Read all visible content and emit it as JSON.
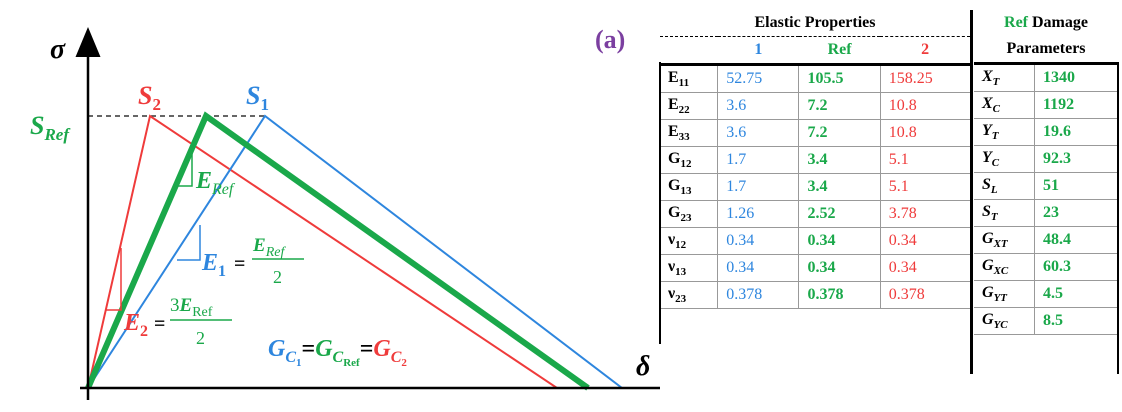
{
  "diagram": {
    "panel_label": "(a)",
    "y_axis_symbol": "σ",
    "x_axis_symbol": "δ",
    "peak_labels": {
      "s2": {
        "base": "S",
        "sub": "2"
      },
      "s1": {
        "base": "S",
        "sub": "1"
      },
      "sref": {
        "base": "S",
        "sub": "Ref"
      }
    },
    "stiffness_labels": {
      "eref": {
        "base": "E",
        "sub": "Ref"
      },
      "e1": {
        "base": "E",
        "sub": "1",
        "eq": "=",
        "num_base": "E",
        "num_sub": "Ref",
        "den": "2"
      },
      "e2": {
        "base": "E",
        "sub": "2",
        "eq": "=",
        "num_coef": "3",
        "num_base": "E",
        "num_sub": "Ref",
        "den": "2"
      }
    },
    "energy_equation": {
      "g1": {
        "base": "G",
        "sub": "C",
        "subsub": "1"
      },
      "gref": {
        "base": "G",
        "sub": "C",
        "subsub": "Ref"
      },
      "g2": {
        "base": "G",
        "sub": "C",
        "subsub": "2"
      },
      "eq": "="
    },
    "colors": {
      "set1": "#2e86de",
      "ref": "#1aa84a",
      "set2": "#ef3b3b",
      "panel": "#7b3fa0"
    }
  },
  "elastic_table": {
    "title": "Elastic Properties",
    "columns": [
      "1",
      "Ref",
      "2"
    ],
    "rows": [
      {
        "base": "E",
        "sub": "11",
        "v1": "52.75",
        "vref": "105.5",
        "v2": "158.25"
      },
      {
        "base": "E",
        "sub": "22",
        "v1": "3.6",
        "vref": "7.2",
        "v2": "10.8"
      },
      {
        "base": "E",
        "sub": "33",
        "v1": "3.6",
        "vref": "7.2",
        "v2": "10.8"
      },
      {
        "base": "G",
        "sub": "12",
        "v1": "1.7",
        "vref": "3.4",
        "v2": "5.1"
      },
      {
        "base": "G",
        "sub": "13",
        "v1": "1.7",
        "vref": "3.4",
        "v2": "5.1"
      },
      {
        "base": "G",
        "sub": "23",
        "v1": "1.26",
        "vref": "2.52",
        "v2": "3.78"
      },
      {
        "base": "ν",
        "sub": "12",
        "v1": "0.34",
        "vref": "0.34",
        "v2": "0.34"
      },
      {
        "base": "ν",
        "sub": "13",
        "v1": "0.34",
        "vref": "0.34",
        "v2": "0.34"
      },
      {
        "base": "ν",
        "sub": "23",
        "v1": "0.378",
        "vref": "0.378",
        "v2": "0.378"
      }
    ]
  },
  "damage_table": {
    "title_ref": "Ref",
    "title_rest": " Damage",
    "title_line2": "Parameters",
    "rows": [
      {
        "base": "X",
        "sub": "T",
        "value": "1340"
      },
      {
        "base": "X",
        "sub": "C",
        "value": "1192"
      },
      {
        "base": "Y",
        "sub": "T",
        "value": "19.6"
      },
      {
        "base": "Y",
        "sub": "C",
        "value": "92.3"
      },
      {
        "base": "S",
        "sub": "L",
        "value": "51"
      },
      {
        "base": "S",
        "sub": "T",
        "value": "23"
      },
      {
        "base": "G",
        "sub": "XT",
        "value": "48.4"
      },
      {
        "base": "G",
        "sub": "XC",
        "value": "60.3"
      },
      {
        "base": "G",
        "sub": "YT",
        "value": "4.5"
      },
      {
        "base": "G",
        "sub": "YC",
        "value": "8.5"
      }
    ]
  }
}
